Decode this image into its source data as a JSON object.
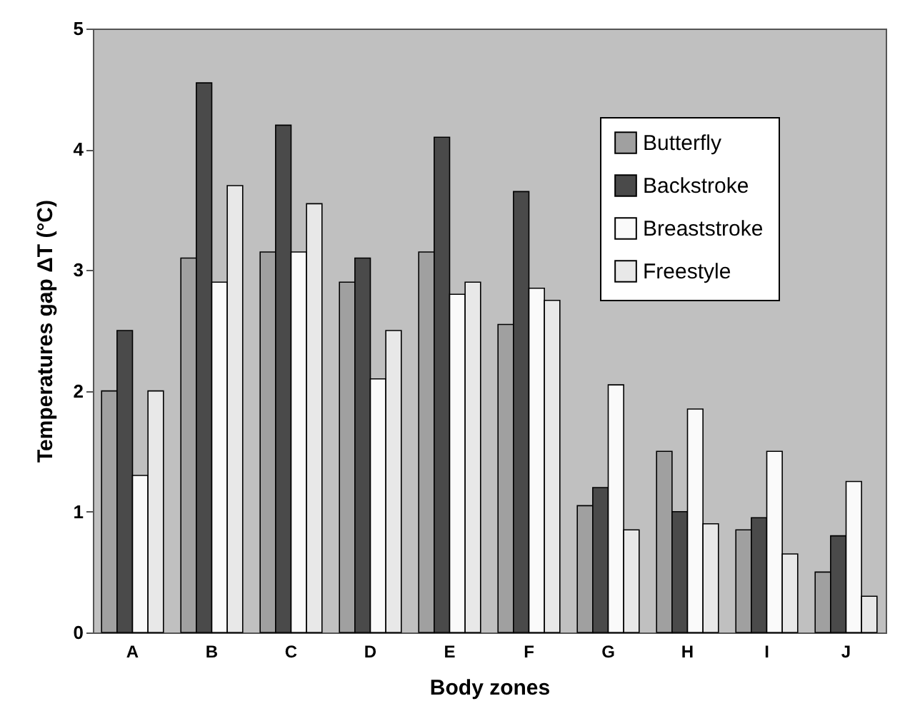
{
  "chart_data": {
    "type": "bar",
    "xlabel": "Body zones",
    "ylabel": "Temperatures gap ΔT (°C)",
    "categories": [
      "A",
      "B",
      "C",
      "D",
      "E",
      "F",
      "G",
      "H",
      "I",
      "J"
    ],
    "series": [
      {
        "name": "Butterfly",
        "color": "#a0a0a0",
        "values": [
          2.0,
          3.1,
          3.15,
          2.9,
          3.15,
          2.55,
          1.05,
          1.5,
          0.85,
          0.5
        ]
      },
      {
        "name": "Backstroke",
        "color": "#4a4a4a",
        "values": [
          2.5,
          4.55,
          4.2,
          3.1,
          4.1,
          3.65,
          1.2,
          1.0,
          0.95,
          0.8
        ]
      },
      {
        "name": "Breaststroke",
        "color": "#fafafa",
        "values": [
          1.3,
          2.9,
          3.15,
          2.1,
          2.8,
          2.85,
          2.05,
          1.85,
          1.5,
          1.25
        ]
      },
      {
        "name": "Freestyle",
        "color": "#e8e8e8",
        "values": [
          2.0,
          3.7,
          3.55,
          2.5,
          2.9,
          2.75,
          0.85,
          0.9,
          0.65,
          0.3
        ]
      }
    ],
    "ylim": [
      0,
      5
    ],
    "yticks": [
      0,
      1,
      2,
      3,
      4,
      5
    ],
    "grid": false,
    "legend": "top right"
  }
}
